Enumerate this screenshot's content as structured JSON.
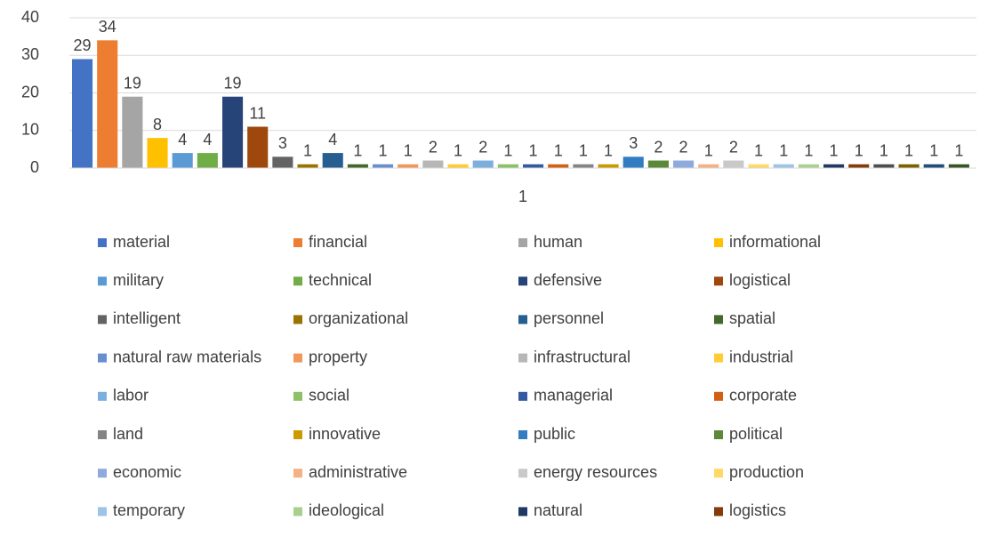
{
  "chart_data": {
    "type": "bar",
    "categories": [
      "1"
    ],
    "ylim": [
      0,
      40
    ],
    "yticks": [
      0,
      10,
      20,
      30,
      40
    ],
    "grid": true,
    "series": [
      {
        "name": "material",
        "color": "#4472C4",
        "values": [
          29
        ]
      },
      {
        "name": "financial",
        "color": "#ED7D31",
        "values": [
          34
        ]
      },
      {
        "name": "human",
        "color": "#A5A5A5",
        "values": [
          19
        ]
      },
      {
        "name": "informational",
        "color": "#FFC000",
        "values": [
          8
        ]
      },
      {
        "name": "military",
        "color": "#5B9BD5",
        "values": [
          4
        ]
      },
      {
        "name": "technical",
        "color": "#70AD47",
        "values": [
          4
        ]
      },
      {
        "name": "defensive",
        "color": "#264478",
        "values": [
          19
        ]
      },
      {
        "name": "logistical",
        "color": "#9E480E",
        "values": [
          11
        ]
      },
      {
        "name": "intelligent",
        "color": "#636363",
        "values": [
          3
        ]
      },
      {
        "name": "organizational",
        "color": "#997300",
        "values": [
          1
        ]
      },
      {
        "name": "personnel",
        "color": "#255E91",
        "values": [
          4
        ]
      },
      {
        "name": "spatial",
        "color": "#43682B",
        "values": [
          1
        ]
      },
      {
        "name": "natural raw materials",
        "color": "#698ED0",
        "values": [
          1
        ]
      },
      {
        "name": "property",
        "color": "#F1975A",
        "values": [
          1
        ]
      },
      {
        "name": "infrastructural",
        "color": "#B7B7B7",
        "values": [
          2
        ]
      },
      {
        "name": "industrial",
        "color": "#FFCD33",
        "values": [
          1
        ]
      },
      {
        "name": "labor",
        "color": "#7CAFDD",
        "values": [
          2
        ]
      },
      {
        "name": "social",
        "color": "#8CC168",
        "values": [
          1
        ]
      },
      {
        "name": "managerial",
        "color": "#335AA1",
        "values": [
          1
        ]
      },
      {
        "name": "corporate",
        "color": "#D26012",
        "values": [
          1
        ]
      },
      {
        "name": "land",
        "color": "#848484",
        "values": [
          1
        ]
      },
      {
        "name": "innovative",
        "color": "#CC9A00",
        "values": [
          1
        ]
      },
      {
        "name": "public",
        "color": "#327DC2",
        "values": [
          3
        ]
      },
      {
        "name": "political",
        "color": "#5A8A39",
        "values": [
          2
        ]
      },
      {
        "name": "economic",
        "color": "#8FAADC",
        "values": [
          2
        ]
      },
      {
        "name": "administrative",
        "color": "#F4B183",
        "values": [
          1
        ]
      },
      {
        "name": "energy resources",
        "color": "#C9C9C9",
        "values": [
          2
        ]
      },
      {
        "name": "production",
        "color": "#FFD966",
        "values": [
          1
        ]
      },
      {
        "name": "temporary",
        "color": "#9DC3E6",
        "values": [
          1
        ]
      },
      {
        "name": "ideological",
        "color": "#A9D18E",
        "values": [
          1
        ]
      },
      {
        "name": "natural",
        "color": "#203864",
        "values": [
          1
        ]
      },
      {
        "name": "logistics",
        "color": "#843C0C",
        "values": [
          1
        ]
      },
      {
        "color": "#4E4E4E",
        "values": [
          1
        ]
      },
      {
        "color": "#7F6000",
        "values": [
          1
        ]
      },
      {
        "color": "#1F4E79",
        "values": [
          1
        ]
      },
      {
        "color": "#375623",
        "values": [
          1
        ]
      }
    ]
  }
}
